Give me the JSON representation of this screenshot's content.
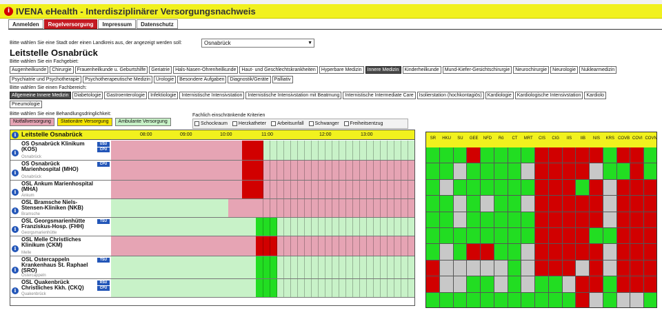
{
  "app": {
    "title": "IVENA eHealth - Interdisziplinärer Versorgungsnachweis",
    "logo_letter": "i"
  },
  "nav": {
    "tabs": [
      "Anmelden",
      "Regelversorgung",
      "Impressum",
      "Datenschutz"
    ],
    "active": 1
  },
  "city": {
    "label": "Bitte wählen Sie eine Stadt oder einen Landkreis aus, der angezeigt werden soll:",
    "selected": "Osnabrück"
  },
  "page_title": "Leitstelle Osnabrück",
  "fachgebiet": {
    "label": "Bitte wählen Sie ein Fachgebiet:",
    "row1": [
      "Augenheilkunde",
      "Chirurgie",
      "Frauenheilkunde u. Geburtshilfe",
      "Geriatrie",
      "Hals-Nasen-Ohrenheilkunde",
      "Haut- und Geschlechtskrankheiten",
      "Hyperbare Medizin",
      "Innere Medizin",
      "Kinderheilkunde",
      "Mund-Kiefer-Gesichtschirurgie",
      "Neurochirurgie",
      "Neurologie",
      "Nuklearmedizin"
    ],
    "row2": [
      "Psychiatrie und Psychotherapie",
      "Psychotherapeutische Medizin",
      "Urologie",
      "Besondere Aufgaben",
      "Diagnostik/Geräte",
      "Palliativ"
    ],
    "selected": "Innere Medizin"
  },
  "fachbereich": {
    "label": "Bitte wählen Sie einen Fachbereich:",
    "row1": [
      "Allgemeine Innere Medizin",
      "Diabetologie",
      "Gastroenterologie",
      "Infektiologie",
      "Internistische Intensivstation",
      "Internistische Intensivstation mit Beatmung",
      "Internistische Intermediate Care",
      "Isolierstation (hochkontagiös)",
      "Kardiologie",
      "Kardiologische Intensivstation",
      "Kardiolo"
    ],
    "row2": [
      "Pneumologie"
    ],
    "selected": "Allgemeine Innere Medizin"
  },
  "dringlichkeit": {
    "label": "Bitte wählen Sie eine Behandlungsdringlichkeit:",
    "options": [
      "Notfallversorgung",
      "Stationäre Versorgung",
      "Ambulante Versorgung"
    ]
  },
  "kriterien": {
    "label": "Fachlich einschränkende Kriterien",
    "items": [
      "Schockraum",
      "Herzkatheter",
      "Arbeitsunfall",
      "Schwanger",
      "Freiheitsentzug"
    ]
  },
  "timeline": {
    "header": "Leitstelle Osnabrück",
    "times": [
      "08:00",
      "09:00",
      "10:00",
      "11:00",
      "12:00",
      "13:00"
    ],
    "hospitals": [
      {
        "name": "OS Osnabrück Klinikum (KOS)",
        "city": "Osnabrück",
        "badges": [
          "USU",
          "CPU"
        ]
      },
      {
        "name": "OS Osnabrück Marienhospital (MHO)",
        "city": "Osnabrück",
        "badges": [
          "CPU"
        ]
      },
      {
        "name": "OSL Ankum Marienhospital (MHA)",
        "city": "Ankum",
        "badges": []
      },
      {
        "name": "OSL Bramsche Niels-Stensen-Kliniken (NKB)",
        "city": "Bramsche",
        "badges": []
      },
      {
        "name": "OSL Georgsmarienhütte Franziskus-Hosp. (FHH)",
        "city": "Georgsmarienhütte",
        "badges": [
          "TSU"
        ]
      },
      {
        "name": "OSL Melle Christliches Klinikum (CKM)",
        "city": "Melle",
        "badges": []
      },
      {
        "name": "OSL Ostercappeln Krankenhaus St. Raphael (SRO)",
        "city": "Ostercappeln",
        "badges": [
          "TSU"
        ]
      },
      {
        "name": "OSL Quakenbrück Christliches Kkh. (CKQ)",
        "city": "Quakenbrück",
        "badges": [
          "RSU",
          "CPU"
        ]
      }
    ],
    "states": [
      [
        "p",
        "p",
        "p",
        "p",
        "p",
        "p",
        "p",
        "p",
        "p",
        "p",
        "p",
        "p",
        "p",
        "p",
        "p",
        "p",
        "p",
        "p",
        "p",
        "r",
        "r",
        "r",
        "g",
        "g",
        "g",
        "g",
        "g",
        "g",
        "g",
        "g",
        "g",
        "g",
        "g",
        "g",
        "g",
        "g",
        "g",
        "g",
        "g",
        "g",
        "g",
        "g",
        "g",
        "g"
      ],
      [
        "p",
        "p",
        "p",
        "p",
        "p",
        "p",
        "p",
        "p",
        "p",
        "p",
        "p",
        "p",
        "p",
        "p",
        "p",
        "p",
        "p",
        "p",
        "p",
        "r",
        "r",
        "r",
        "p",
        "p",
        "p",
        "p",
        "p",
        "p",
        "p",
        "p",
        "p",
        "p",
        "p",
        "p",
        "p",
        "p",
        "p",
        "p",
        "p",
        "p",
        "p",
        "p",
        "p",
        "p"
      ],
      [
        "p",
        "p",
        "p",
        "p",
        "p",
        "p",
        "p",
        "p",
        "p",
        "p",
        "p",
        "p",
        "p",
        "p",
        "p",
        "p",
        "p",
        "p",
        "p",
        "r",
        "r",
        "r",
        "p",
        "p",
        "p",
        "p",
        "p",
        "p",
        "p",
        "p",
        "p",
        "p",
        "p",
        "p",
        "p",
        "p",
        "p",
        "p",
        "p",
        "p",
        "p",
        "p",
        "p",
        "p"
      ],
      [
        "g",
        "g",
        "g",
        "g",
        "g",
        "g",
        "g",
        "g",
        "g",
        "g",
        "g",
        "g",
        "g",
        "g",
        "g",
        "g",
        "g",
        "p",
        "p",
        "p",
        "p",
        "p",
        "p",
        "p",
        "p",
        "p",
        "p",
        "p",
        "p",
        "p",
        "p",
        "p",
        "p",
        "p",
        "p",
        "p",
        "p",
        "p",
        "p",
        "p",
        "p",
        "p",
        "p",
        "p"
      ],
      [
        "g",
        "g",
        "g",
        "g",
        "g",
        "g",
        "g",
        "g",
        "g",
        "g",
        "g",
        "g",
        "g",
        "g",
        "g",
        "g",
        "g",
        "g",
        "g",
        "g",
        "g",
        "G",
        "G",
        "G",
        "g",
        "g",
        "g",
        "g",
        "g",
        "g",
        "g",
        "g",
        "g",
        "g",
        "g",
        "g",
        "g",
        "g",
        "g",
        "g",
        "g",
        "g",
        "g",
        "g"
      ],
      [
        "p",
        "p",
        "p",
        "p",
        "p",
        "p",
        "p",
        "p",
        "p",
        "p",
        "p",
        "p",
        "p",
        "p",
        "p",
        "p",
        "p",
        "p",
        "p",
        "p",
        "p",
        "r",
        "r",
        "r",
        "p",
        "p",
        "p",
        "p",
        "p",
        "p",
        "p",
        "p",
        "p",
        "p",
        "p",
        "p",
        "p",
        "p",
        "p",
        "p",
        "p",
        "p",
        "p",
        "p"
      ],
      [
        "g",
        "g",
        "g",
        "g",
        "g",
        "g",
        "g",
        "g",
        "g",
        "g",
        "g",
        "g",
        "g",
        "g",
        "g",
        "g",
        "g",
        "g",
        "g",
        "g",
        "g",
        "G",
        "G",
        "G",
        "g",
        "g",
        "g",
        "g",
        "g",
        "g",
        "g",
        "g",
        "g",
        "g",
        "g",
        "g",
        "g",
        "g",
        "g",
        "g",
        "g",
        "g",
        "g",
        "g"
      ],
      [
        "g",
        "g",
        "g",
        "g",
        "g",
        "g",
        "g",
        "g",
        "g",
        "g",
        "g",
        "g",
        "g",
        "g",
        "g",
        "g",
        "g",
        "g",
        "g",
        "g",
        "g",
        "G",
        "G",
        "G",
        "g",
        "g",
        "g",
        "g",
        "g",
        "g",
        "g",
        "g",
        "g",
        "g",
        "g",
        "g",
        "g",
        "g",
        "g",
        "g",
        "g",
        "g",
        "g",
        "g"
      ]
    ]
  },
  "resources": {
    "columns": [
      "SR",
      "HKU",
      "SU",
      "GEE",
      "NFD",
      "Rö",
      "CT",
      "MRT",
      "CIS",
      "CIG",
      "IIS",
      "IIB",
      "NIS",
      "KRS",
      "COVB",
      "COVI",
      "COVN"
    ],
    "grid": [
      [
        "G",
        "G",
        "G",
        "R",
        "G",
        "G",
        "G",
        "G",
        "R",
        "R",
        "R",
        "R",
        "R",
        "G",
        "R",
        "R",
        "G"
      ],
      [
        "G",
        "G",
        "S",
        "G",
        "G",
        "G",
        "G",
        "S",
        "R",
        "R",
        "R",
        "R",
        "S",
        "G",
        "G",
        "R",
        "G"
      ],
      [
        "G",
        "S",
        "G",
        "G",
        "G",
        "G",
        "G",
        "G",
        "R",
        "R",
        "R",
        "G",
        "R",
        "S",
        "R",
        "R",
        "R"
      ],
      [
        "G",
        "G",
        "S",
        "G",
        "S",
        "G",
        "G",
        "S",
        "R",
        "R",
        "R",
        "R",
        "R",
        "S",
        "R",
        "R",
        "R"
      ],
      [
        "G",
        "G",
        "S",
        "G",
        "G",
        "G",
        "G",
        "G",
        "R",
        "R",
        "R",
        "R",
        "R",
        "S",
        "R",
        "R",
        "R"
      ],
      [
        "G",
        "G",
        "G",
        "G",
        "G",
        "G",
        "G",
        "G",
        "R",
        "R",
        "R",
        "R",
        "G",
        "G",
        "R",
        "R",
        "R"
      ],
      [
        "G",
        "S",
        "G",
        "R",
        "R",
        "G",
        "G",
        "S",
        "R",
        "R",
        "R",
        "R",
        "R",
        "S",
        "R",
        "R",
        "R"
      ],
      [
        "R",
        "S",
        "S",
        "S",
        "S",
        "S",
        "G",
        "S",
        "R",
        "R",
        "R",
        "S",
        "R",
        "S",
        "R",
        "R",
        "R"
      ],
      [
        "R",
        "S",
        "S",
        "G",
        "G",
        "S",
        "G",
        "S",
        "G",
        "G",
        "S",
        "R",
        "R",
        "G",
        "R",
        "R",
        "R"
      ],
      [
        "G",
        "G",
        "G",
        "G",
        "G",
        "G",
        "G",
        "G",
        "G",
        "G",
        "G",
        "R",
        "S",
        "G",
        "S",
        "S",
        "G"
      ]
    ]
  }
}
